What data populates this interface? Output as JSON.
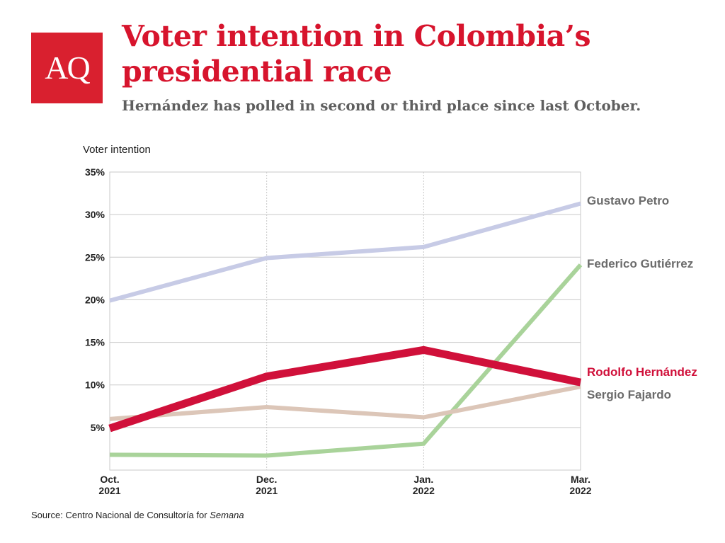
{
  "logo": {
    "text": "AQ"
  },
  "header": {
    "title": "Voter intention in Colombia’s presidential race",
    "subtitle": "Hernández has polled in second or third place since last October."
  },
  "source": {
    "prefix": "Source: Centro Nacional de Consultoría for ",
    "publication": "Semana"
  },
  "colors": {
    "brand": "#d7142d",
    "petro": "#c7cbe6",
    "gutierrez": "#a9d39a",
    "hernandez": "#d0103a",
    "fajardo": "#dcc6b8",
    "grid": "#c9c9c9",
    "label_gray": "#6b6b6b"
  },
  "chart_data": {
    "type": "line",
    "ylabel": "Voter intention",
    "ylim": [
      0,
      35
    ],
    "yticks": [
      5,
      10,
      15,
      20,
      25,
      30,
      35
    ],
    "ytick_labels": [
      "5%",
      "10%",
      "15%",
      "20%",
      "25%",
      "30%",
      "35%"
    ],
    "categories": [
      [
        "Oct.",
        "2021"
      ],
      [
        "Dec.",
        "2021"
      ],
      [
        "Jan.",
        "2022"
      ],
      [
        "Mar.",
        "2022"
      ]
    ],
    "grid": true,
    "series": [
      {
        "name": "Gustavo Petro",
        "values": [
          19.9,
          24.9,
          26.2,
          31.3
        ],
        "color": "#c7cbe6",
        "highlight": false
      },
      {
        "name": "Federico Gutiérrez",
        "values": [
          1.8,
          1.7,
          3.1,
          24.1
        ],
        "color": "#a9d39a",
        "highlight": false
      },
      {
        "name": "Sergio Fajardo",
        "values": [
          6.0,
          7.4,
          6.2,
          9.8
        ],
        "color": "#dcc6b8",
        "highlight": false
      },
      {
        "name": "Rodolfo Hernández",
        "values": [
          4.9,
          11.0,
          14.1,
          10.3
        ],
        "color": "#d0103a",
        "highlight": true
      }
    ]
  }
}
